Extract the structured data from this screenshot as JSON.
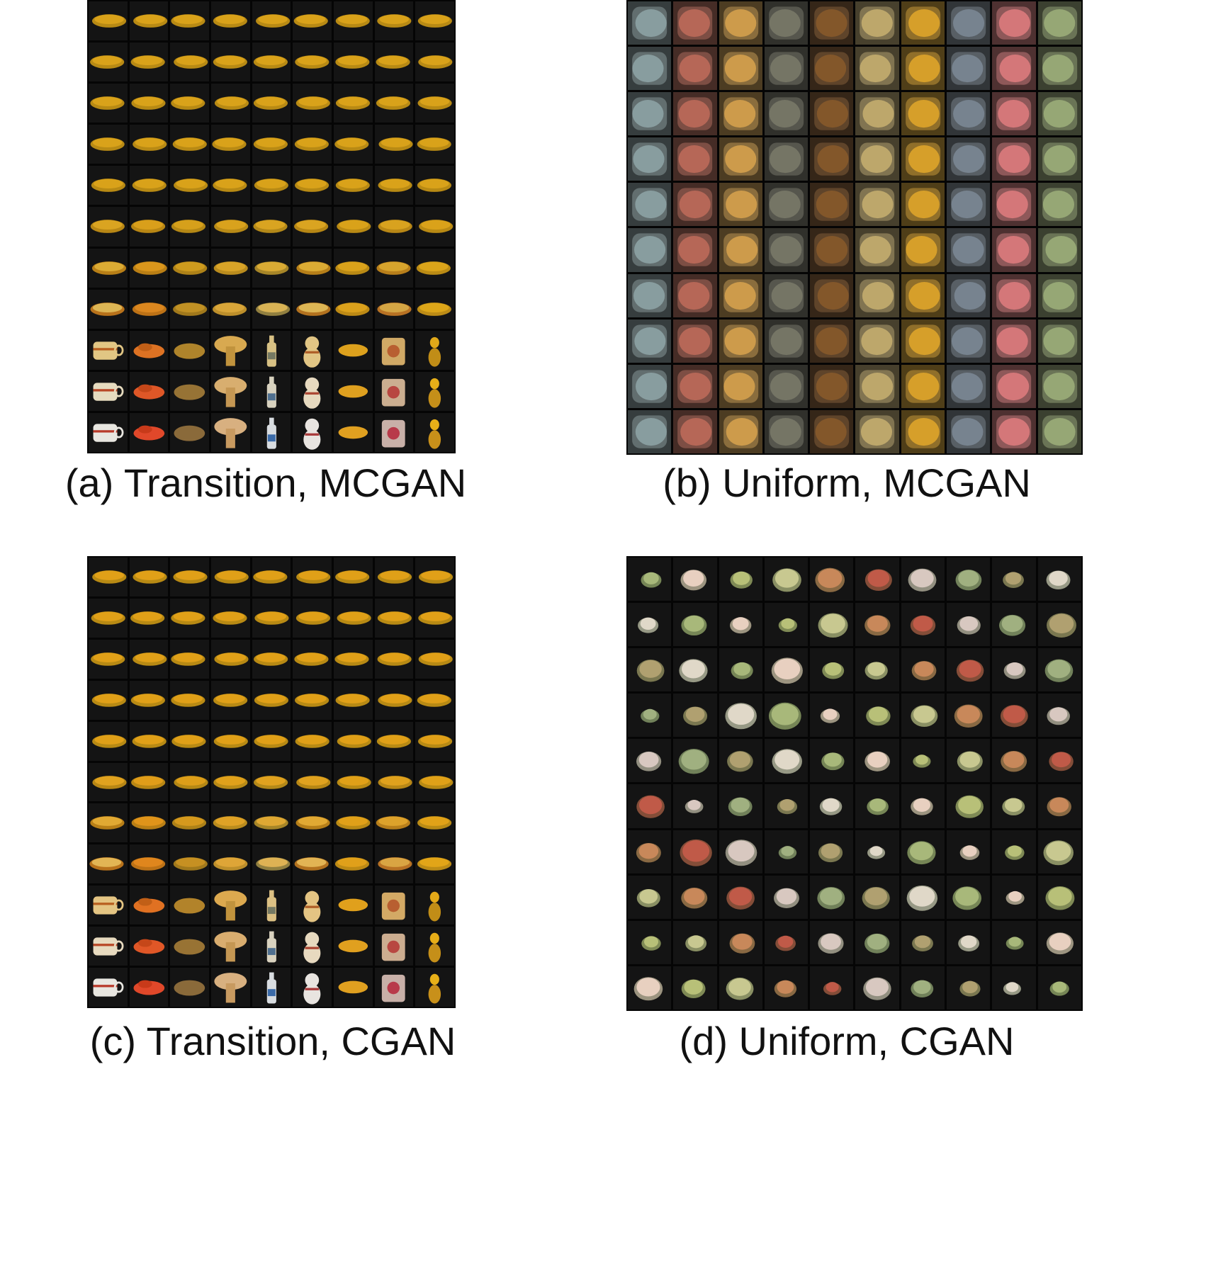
{
  "figure": {
    "panels": [
      {
        "id": "a",
        "caption": "(a) Transition, MCGAN",
        "grid": {
          "rows": 11,
          "cols": 9
        },
        "content": "transition",
        "palette": [
          "#d9a21a",
          "#d9a21a",
          "#d9a21a",
          "#d9a21a",
          "#d9a21a",
          "#d9a21a",
          "#d9a21a",
          "#d9a21a",
          "#d9a21a"
        ],
        "final_objects": [
          "cup",
          "toy-car",
          "bowl",
          "mushroom",
          "bottle",
          "figurine",
          "bread",
          "mug",
          "duck"
        ]
      },
      {
        "id": "b",
        "caption": "(b) Uniform, MCGAN",
        "grid": {
          "rows": 10,
          "cols": 10
        },
        "content": "uniform-blurry",
        "palette": [
          "#8fa6a8",
          "#c06c5a",
          "#d8a34d",
          "#7a7a6a",
          "#8a5a2a",
          "#c8b070",
          "#e3a82a",
          "#7d8a96",
          "#e07d7f",
          "#9eb07a"
        ]
      },
      {
        "id": "c",
        "caption": "(c) Transition, CGAN",
        "grid": {
          "rows": 11,
          "cols": 9
        },
        "content": "transition",
        "palette": [
          "#e0a018",
          "#e0a018",
          "#e0a018",
          "#e0a018",
          "#e0a018",
          "#e0a018",
          "#e0a018",
          "#e0a018",
          "#e0a018"
        ],
        "final_objects": [
          "cup",
          "toy-car",
          "bowl",
          "mushroom",
          "bottle",
          "figurine",
          "bread",
          "mug",
          "duck"
        ]
      },
      {
        "id": "d",
        "caption": "(d) Uniform, CGAN",
        "grid": {
          "rows": 10,
          "cols": 10
        },
        "content": "uniform-sparse",
        "palette": [
          "#a8b87a",
          "#c8c890",
          "#d8c8c0",
          "#e0d8c8",
          "#b8c078",
          "#c05a48",
          "#b0a070",
          "#e8d0c0",
          "#c8885a",
          "#a0b080"
        ]
      }
    ]
  }
}
